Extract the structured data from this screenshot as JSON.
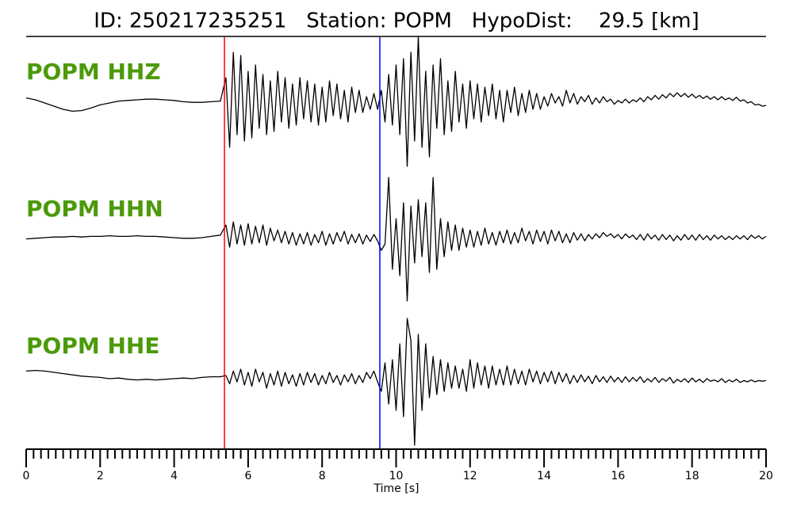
{
  "chart_data": {
    "type": "line",
    "title": "ID: 250217235251   Station: POPM   HypoDist:    29.5 [km]",
    "xlabel": "Time [s]",
    "xlim": [
      0,
      20
    ],
    "xticks": [
      0,
      2,
      4,
      6,
      8,
      10,
      12,
      14,
      16,
      18,
      20
    ],
    "xminorticks": [
      0.2,
      0.4,
      0.6,
      0.8,
      1,
      1.2,
      1.4,
      1.6,
      1.8,
      2.2,
      2.4,
      2.6,
      2.8,
      3,
      3.2,
      3.4,
      3.6,
      3.8,
      4.2,
      4.4,
      4.6,
      4.8,
      5,
      5.2,
      5.4,
      5.6,
      5.8,
      6.2,
      6.4,
      6.6,
      6.8,
      7,
      7.2,
      7.4,
      7.6,
      7.8,
      8.2,
      8.4,
      8.6,
      8.8,
      9,
      9.2,
      9.4,
      9.6,
      9.8,
      10.2,
      10.4,
      10.6,
      10.8,
      11,
      11.2,
      11.4,
      11.6,
      11.8,
      12.2,
      12.4,
      12.6,
      12.8,
      13,
      13.2,
      13.4,
      13.6,
      13.8,
      14.2,
      14.4,
      14.6,
      14.8,
      15,
      15.2,
      15.4,
      15.6,
      15.8,
      16.2,
      16.4,
      16.6,
      16.8,
      17,
      17.2,
      17.4,
      17.6,
      17.8,
      18.2,
      18.4,
      18.6,
      18.8,
      19,
      19.2,
      19.4,
      19.6,
      19.8
    ],
    "ylim": [
      -1,
      1
    ],
    "label_color": "#4b9a0a",
    "picks": [
      {
        "x": 5.36,
        "color": "#ff0000"
      },
      {
        "x": 9.56,
        "color": "#0000ff"
      }
    ],
    "x": [
      0,
      0.25,
      0.5,
      0.75,
      1,
      1.25,
      1.5,
      1.75,
      2,
      2.25,
      2.5,
      2.75,
      3,
      3.25,
      3.5,
      3.75,
      4,
      4.25,
      4.5,
      4.75,
      5,
      5.25,
      5.4,
      5.5,
      5.6,
      5.7,
      5.8,
      5.9,
      6,
      6.1,
      6.2,
      6.3,
      6.4,
      6.5,
      6.6,
      6.7,
      6.8,
      6.9,
      7,
      7.1,
      7.2,
      7.3,
      7.4,
      7.5,
      7.6,
      7.7,
      7.8,
      7.9,
      8,
      8.1,
      8.2,
      8.3,
      8.4,
      8.5,
      8.6,
      8.7,
      8.8,
      8.9,
      9,
      9.1,
      9.2,
      9.3,
      9.4,
      9.5,
      9.6,
      9.7,
      9.8,
      9.9,
      10,
      10.1,
      10.2,
      10.3,
      10.4,
      10.5,
      10.6,
      10.7,
      10.8,
      10.9,
      11,
      11.1,
      11.2,
      11.3,
      11.4,
      11.5,
      11.6,
      11.7,
      11.8,
      11.9,
      12,
      12.1,
      12.2,
      12.3,
      12.4,
      12.5,
      12.6,
      12.7,
      12.8,
      12.9,
      13,
      13.1,
      13.2,
      13.3,
      13.4,
      13.5,
      13.6,
      13.7,
      13.8,
      13.9,
      14,
      14.1,
      14.2,
      14.3,
      14.4,
      14.5,
      14.6,
      14.7,
      14.8,
      14.9,
      15,
      15.1,
      15.2,
      15.3,
      15.4,
      15.5,
      15.6,
      15.7,
      15.8,
      15.9,
      16,
      16.1,
      16.2,
      16.3,
      16.4,
      16.5,
      16.6,
      16.7,
      16.8,
      16.9,
      17,
      17.1,
      17.2,
      17.3,
      17.4,
      17.5,
      17.6,
      17.7,
      17.8,
      17.9,
      18,
      18.1,
      18.2,
      18.3,
      18.4,
      18.5,
      18.6,
      18.7,
      18.8,
      18.9,
      19,
      19.1,
      19.2,
      19.3,
      19.4,
      19.5,
      19.6,
      19.7,
      19.8,
      19.9,
      20
    ],
    "series": [
      {
        "name": "POPM HHZ",
        "color": "#000000",
        "values": [
          0.08,
          0.05,
          0,
          -0.05,
          -0.1,
          -0.13,
          -0.12,
          -0.08,
          -0.03,
          0,
          0.03,
          0.04,
          0.05,
          0.06,
          0.06,
          0.05,
          0.04,
          0.02,
          0.01,
          0.01,
          0.02,
          0.03,
          0.4,
          -0.7,
          0.8,
          -0.5,
          0.75,
          -0.6,
          0.5,
          -0.55,
          0.6,
          -0.4,
          0.45,
          -0.5,
          0.35,
          -0.45,
          0.5,
          -0.3,
          0.4,
          -0.4,
          0.3,
          -0.35,
          0.4,
          -0.25,
          0.35,
          -0.3,
          0.3,
          -0.35,
          0.25,
          -0.3,
          0.35,
          -0.2,
          0.3,
          -0.25,
          0.2,
          -0.3,
          0.25,
          -0.15,
          0.2,
          -0.15,
          0.1,
          -0.1,
          0.15,
          -0.1,
          0.2,
          -0.3,
          0.45,
          -0.35,
          0.6,
          -0.5,
          0.7,
          -1,
          0.8,
          -0.6,
          1.05,
          -0.7,
          0.5,
          -0.85,
          0.6,
          -0.4,
          0.7,
          -0.5,
          0.35,
          -0.45,
          0.5,
          -0.3,
          0.3,
          -0.4,
          0.35,
          -0.25,
          0.3,
          -0.3,
          0.25,
          -0.2,
          0.3,
          -0.25,
          0.2,
          -0.3,
          0.2,
          -0.15,
          0.25,
          -0.2,
          0.15,
          -0.15,
          0.2,
          -0.1,
          0.15,
          -0.1,
          0.1,
          -0.05,
          0.15,
          0,
          0.1,
          -0.05,
          0.2,
          0,
          0.15,
          -0.02,
          0.1,
          0.02,
          0.12,
          -0.02,
          0.08,
          0,
          0.1,
          0.02,
          0.06,
          -0.02,
          0.04,
          0,
          0.06,
          0,
          0.05,
          0.02,
          0.08,
          0.02,
          0.1,
          0.05,
          0.12,
          0.06,
          0.13,
          0.08,
          0.15,
          0.1,
          0.16,
          0.1,
          0.15,
          0.09,
          0.14,
          0.08,
          0.12,
          0.07,
          0.11,
          0.06,
          0.1,
          0.05,
          0.1,
          0.05,
          0.08,
          0.04,
          0.09,
          0.03,
          0.05,
          0,
          0.02,
          -0.03,
          -0.02,
          -0.05,
          -0.04
        ]
      },
      {
        "name": "POPM HHN",
        "color": "#000000",
        "values": [
          -0.02,
          -0.01,
          0,
          0.01,
          0.01,
          0.02,
          0.01,
          0.02,
          0.02,
          0.03,
          0.02,
          0.02,
          0.03,
          0.02,
          0.02,
          0.01,
          0,
          -0.01,
          -0.01,
          0,
          0.02,
          0.04,
          0.2,
          -0.15,
          0.25,
          -0.1,
          0.2,
          -0.12,
          0.22,
          -0.1,
          0.18,
          -0.08,
          0.2,
          -0.12,
          0.15,
          -0.05,
          0.12,
          -0.08,
          0.1,
          -0.1,
          0.08,
          -0.12,
          0.06,
          -0.1,
          0.08,
          -0.12,
          0.05,
          -0.08,
          0.1,
          -0.12,
          0.06,
          -0.1,
          0.08,
          -0.06,
          0.1,
          -0.1,
          0.05,
          -0.08,
          0.06,
          -0.1,
          0.04,
          -0.06,
          0.05,
          -0.05,
          -0.2,
          -0.1,
          0.95,
          -0.5,
          0.3,
          -0.6,
          0.55,
          -1,
          0.5,
          -0.4,
          0.6,
          -0.3,
          0.55,
          -0.55,
          0.95,
          -0.5,
          0.3,
          -0.3,
          0.25,
          -0.2,
          0.2,
          -0.2,
          0.15,
          -0.15,
          0.12,
          -0.15,
          0.1,
          -0.12,
          0.15,
          -0.1,
          0.08,
          -0.12,
          0.1,
          -0.08,
          0.12,
          -0.1,
          0.08,
          -0.08,
          0.15,
          -0.05,
          0.1,
          -0.1,
          0.12,
          -0.06,
          0.1,
          -0.1,
          0.12,
          -0.05,
          0.1,
          -0.08,
          0.06,
          -0.08,
          0.08,
          -0.04,
          0.06,
          -0.05,
          0.05,
          -0.02,
          0.06,
          0,
          0.08,
          0.02,
          0.06,
          0,
          0.05,
          -0.02,
          0.06,
          0,
          0.04,
          -0.03,
          0.05,
          -0.04,
          0.06,
          -0.02,
          0.04,
          -0.04,
          0.05,
          -0.03,
          0.04,
          -0.05,
          0.03,
          -0.04,
          0.05,
          -0.03,
          0.04,
          -0.04,
          0.05,
          -0.03,
          0.03,
          -0.04,
          0.04,
          -0.02,
          0.03,
          -0.03,
          0.02,
          -0.03,
          0.03,
          -0.02,
          0.03,
          -0.03,
          0.04,
          -0.01,
          0.03,
          -0.02,
          0.02
        ]
      },
      {
        "name": "POPM HHE",
        "color": "#000000",
        "values": [
          0.12,
          0.13,
          0.12,
          0.1,
          0.08,
          0.06,
          0.04,
          0.03,
          0.02,
          0,
          0.01,
          -0.01,
          -0.02,
          -0.01,
          -0.02,
          -0.01,
          0,
          0.01,
          0,
          0.02,
          0.03,
          0.03,
          0.05,
          -0.08,
          0.12,
          -0.05,
          0.15,
          -0.1,
          0.1,
          -0.12,
          0.15,
          -0.05,
          0.1,
          -0.15,
          0.08,
          -0.1,
          0.12,
          -0.12,
          0.1,
          -0.08,
          0.06,
          -0.12,
          0.08,
          -0.1,
          0.1,
          -0.06,
          0.08,
          -0.1,
          0.05,
          -0.08,
          0.1,
          -0.06,
          0.05,
          -0.1,
          0.06,
          -0.05,
          0.08,
          -0.08,
          0.05,
          -0.06,
          0.1,
          0,
          0.12,
          -0.05,
          -0.2,
          0.25,
          -0.4,
          0.3,
          -0.5,
          0.55,
          -0.6,
          0.95,
          0.6,
          -1.05,
          0.7,
          -0.5,
          0.55,
          -0.3,
          0.35,
          -0.25,
          0.3,
          -0.2,
          0.25,
          -0.15,
          0.2,
          -0.15,
          0.15,
          -0.2,
          0.3,
          -0.15,
          0.25,
          -0.1,
          0.2,
          -0.15,
          0.2,
          -0.1,
          0.15,
          -0.1,
          0.2,
          -0.1,
          0.15,
          -0.08,
          0.12,
          -0.1,
          0.15,
          -0.05,
          0.12,
          -0.08,
          0.1,
          -0.05,
          0.12,
          -0.08,
          0.1,
          -0.05,
          0.08,
          -0.08,
          0.05,
          -0.06,
          0.06,
          -0.05,
          0.04,
          -0.08,
          0.05,
          -0.05,
          0.03,
          -0.06,
          0.04,
          -0.05,
          0.02,
          -0.06,
          0.03,
          -0.05,
          0.02,
          -0.04,
          0.03,
          -0.06,
          0,
          -0.05,
          0.02,
          -0.06,
          0,
          -0.04,
          0.02,
          -0.07,
          -0.01,
          -0.05,
          0,
          -0.06,
          0.01,
          -0.05,
          -0.01,
          -0.06,
          0,
          -0.04,
          -0.02,
          -0.05,
          0,
          -0.06,
          -0.02,
          -0.05,
          -0.01,
          -0.06,
          -0.03,
          -0.05,
          -0.02,
          -0.05,
          -0.03,
          -0.04,
          -0.03
        ]
      }
    ]
  }
}
